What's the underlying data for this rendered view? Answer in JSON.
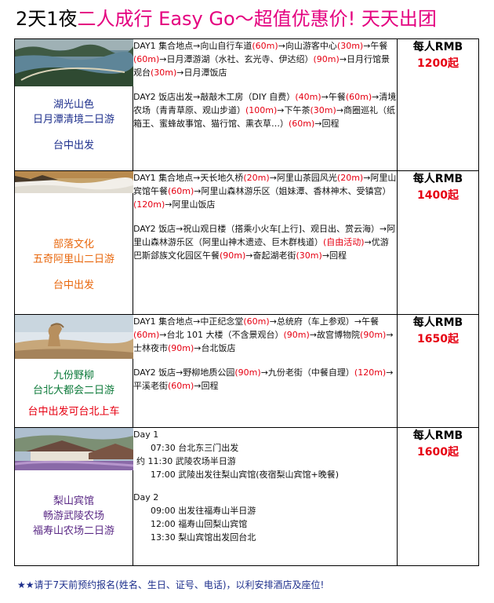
{
  "title": {
    "part1": "2天1夜",
    "part2": "二人成行 Easy Go～超值优惠价! 天天出团"
  },
  "plans": [
    {
      "image_icon": "sun-moon-lake-photo",
      "caption": [
        "湖光山色",
        "日月潭清境二日游"
      ],
      "depart": "台中出发",
      "itinerary": [
        [
          {
            "t": "DAY1 集合地点→向山自行车道"
          },
          {
            "t": "(60m)",
            "r": 1
          },
          {
            "t": "→向山游客中心"
          },
          {
            "t": "(30m)",
            "r": 1
          },
          {
            "t": "→午餐"
          },
          {
            "t": "(60m)",
            "r": 1
          },
          {
            "t": "→日月潭游湖（水社、玄光寺、伊达绍）"
          },
          {
            "t": "(90m)",
            "r": 1
          },
          {
            "t": "→日月行馆景观台"
          },
          {
            "t": "(30m)",
            "r": 1
          },
          {
            "t": "→日月潭饭店"
          }
        ],
        [
          {
            "t": "DAY2 饭店出发→敲敲木工房（DIY 自费）"
          },
          {
            "t": "(40m)",
            "r": 1
          },
          {
            "t": "→午餐"
          },
          {
            "t": "(60m)",
            "r": 1
          },
          {
            "t": "→清境农场（青青草原、观山步道）"
          },
          {
            "t": "(100m)",
            "r": 1
          },
          {
            "t": "→下午茶"
          },
          {
            "t": "(30m)",
            "r": 1
          },
          {
            "t": "→商圈巡礼（纸箱王、蜜蜂故事馆、猫行馆、熏衣草…）"
          },
          {
            "t": "(60m)",
            "r": 1
          },
          {
            "t": "→回程"
          }
        ]
      ],
      "price_label": "每人RMB",
      "price": "1200起"
    },
    {
      "image_icon": "alishan-sea-of-clouds-photo",
      "caption": [
        "部落文化",
        "五奇阿里山二日游"
      ],
      "depart": "台中出发",
      "itinerary": [
        [
          {
            "t": "DAY1 集合地点→天长地久桥"
          },
          {
            "t": "(20m)",
            "r": 1
          },
          {
            "t": "→阿里山茶园风光"
          },
          {
            "t": "(20m)",
            "r": 1
          },
          {
            "t": "→阿里山宾馆午餐"
          },
          {
            "t": "(60m)",
            "r": 1
          },
          {
            "t": "→阿里山森林游乐区（姐妹潭、香林神木、受镇宫）"
          },
          {
            "t": "(120m)",
            "r": 1
          },
          {
            "t": "→阿里山饭店"
          }
        ],
        [
          {
            "t": "DAY2 饭店→祝山观日楼（搭乘小火车[上行]、观日出、赏云海）→阿里山森林游乐区（阿里山神木遗迹、巨木群栈道）"
          },
          {
            "t": "(自由活动)",
            "r": 1
          },
          {
            "t": "→优游巴斯郐族文化园区午餐"
          },
          {
            "t": "(90m)",
            "r": 1
          },
          {
            "t": "→奋起湖老街"
          },
          {
            "t": "(30m)",
            "r": 1
          },
          {
            "t": "→回程"
          }
        ]
      ],
      "price_label": "每人RMB",
      "price": "1400起"
    },
    {
      "image_icon": "yehliu-queens-head-photo",
      "caption": [
        "九份野柳",
        "台北大都会二日游"
      ],
      "depart": "台中出发可台北上车",
      "itinerary": [
        [
          {
            "t": "DAY1 集合地点→中正纪念堂"
          },
          {
            "t": "(60m)",
            "r": 1
          },
          {
            "t": "→总统府（车上参观）"
          },
          {
            "t": "→午餐"
          },
          {
            "t": "(60m)",
            "r": 1
          },
          {
            "t": "→台北 101 大楼（不含景观台）"
          },
          {
            "t": "(90m)",
            "r": 1
          },
          {
            "t": "→故宫博物院"
          },
          {
            "t": "(90m)",
            "r": 1
          },
          {
            "t": "→士林夜市"
          },
          {
            "t": "(90m)",
            "r": 1
          },
          {
            "t": "→台北饭店"
          }
        ],
        [
          {
            "t": "DAY2 饭店→野柳地质公园"
          },
          {
            "t": "(90m)",
            "r": 1
          },
          {
            "t": "→九份老街（中餐自理）"
          },
          {
            "t": "(120m)",
            "r": 1
          },
          {
            "t": "→平溪老街"
          },
          {
            "t": "(60m)",
            "r": 1
          },
          {
            "t": "→回程"
          }
        ]
      ],
      "price_label": "每人RMB",
      "price": "1650起"
    },
    {
      "image_icon": "lishan-hotel-photo",
      "caption": [
        "梨山宾馆",
        "畅游武陵农场",
        "福寿山农场二日游"
      ],
      "schedule": [
        {
          "day": "Day 1",
          "items": [
            {
              "time": "07:30",
              "text": "台北东三门出发",
              "prefix": ""
            },
            {
              "time": "11:30",
              "text": "武陵农场半日游",
              "prefix": "约"
            },
            {
              "time": "17:00",
              "text": "武陵出发往梨山宾馆(夜宿梨山宾馆+晚餐)",
              "prefix": ""
            }
          ]
        },
        {
          "day": "Day 2",
          "items": [
            {
              "time": "09:00",
              "text": "出发往福寿山半日游",
              "prefix": ""
            },
            {
              "time": "12:00",
              "text": "福寿山回梨山宾馆",
              "prefix": ""
            },
            {
              "time": "13:30",
              "text": "梨山宾馆出发回台北",
              "prefix": ""
            }
          ]
        }
      ],
      "price_label": "每人RMB",
      "price": "1600起"
    }
  ],
  "footer": {
    "stars": "★★",
    "text": "请于7天前预约报名(姓名、生日、证号、电话)，以利安排酒店及座位!"
  },
  "colors": {
    "title_accent": "#e4007f",
    "price_red": "#e60012",
    "caption_blue": "#1d2f8c",
    "caption_orange": "#e8670c",
    "caption_green": "#0d7a3a",
    "caption_purple": "#5b2a86"
  }
}
